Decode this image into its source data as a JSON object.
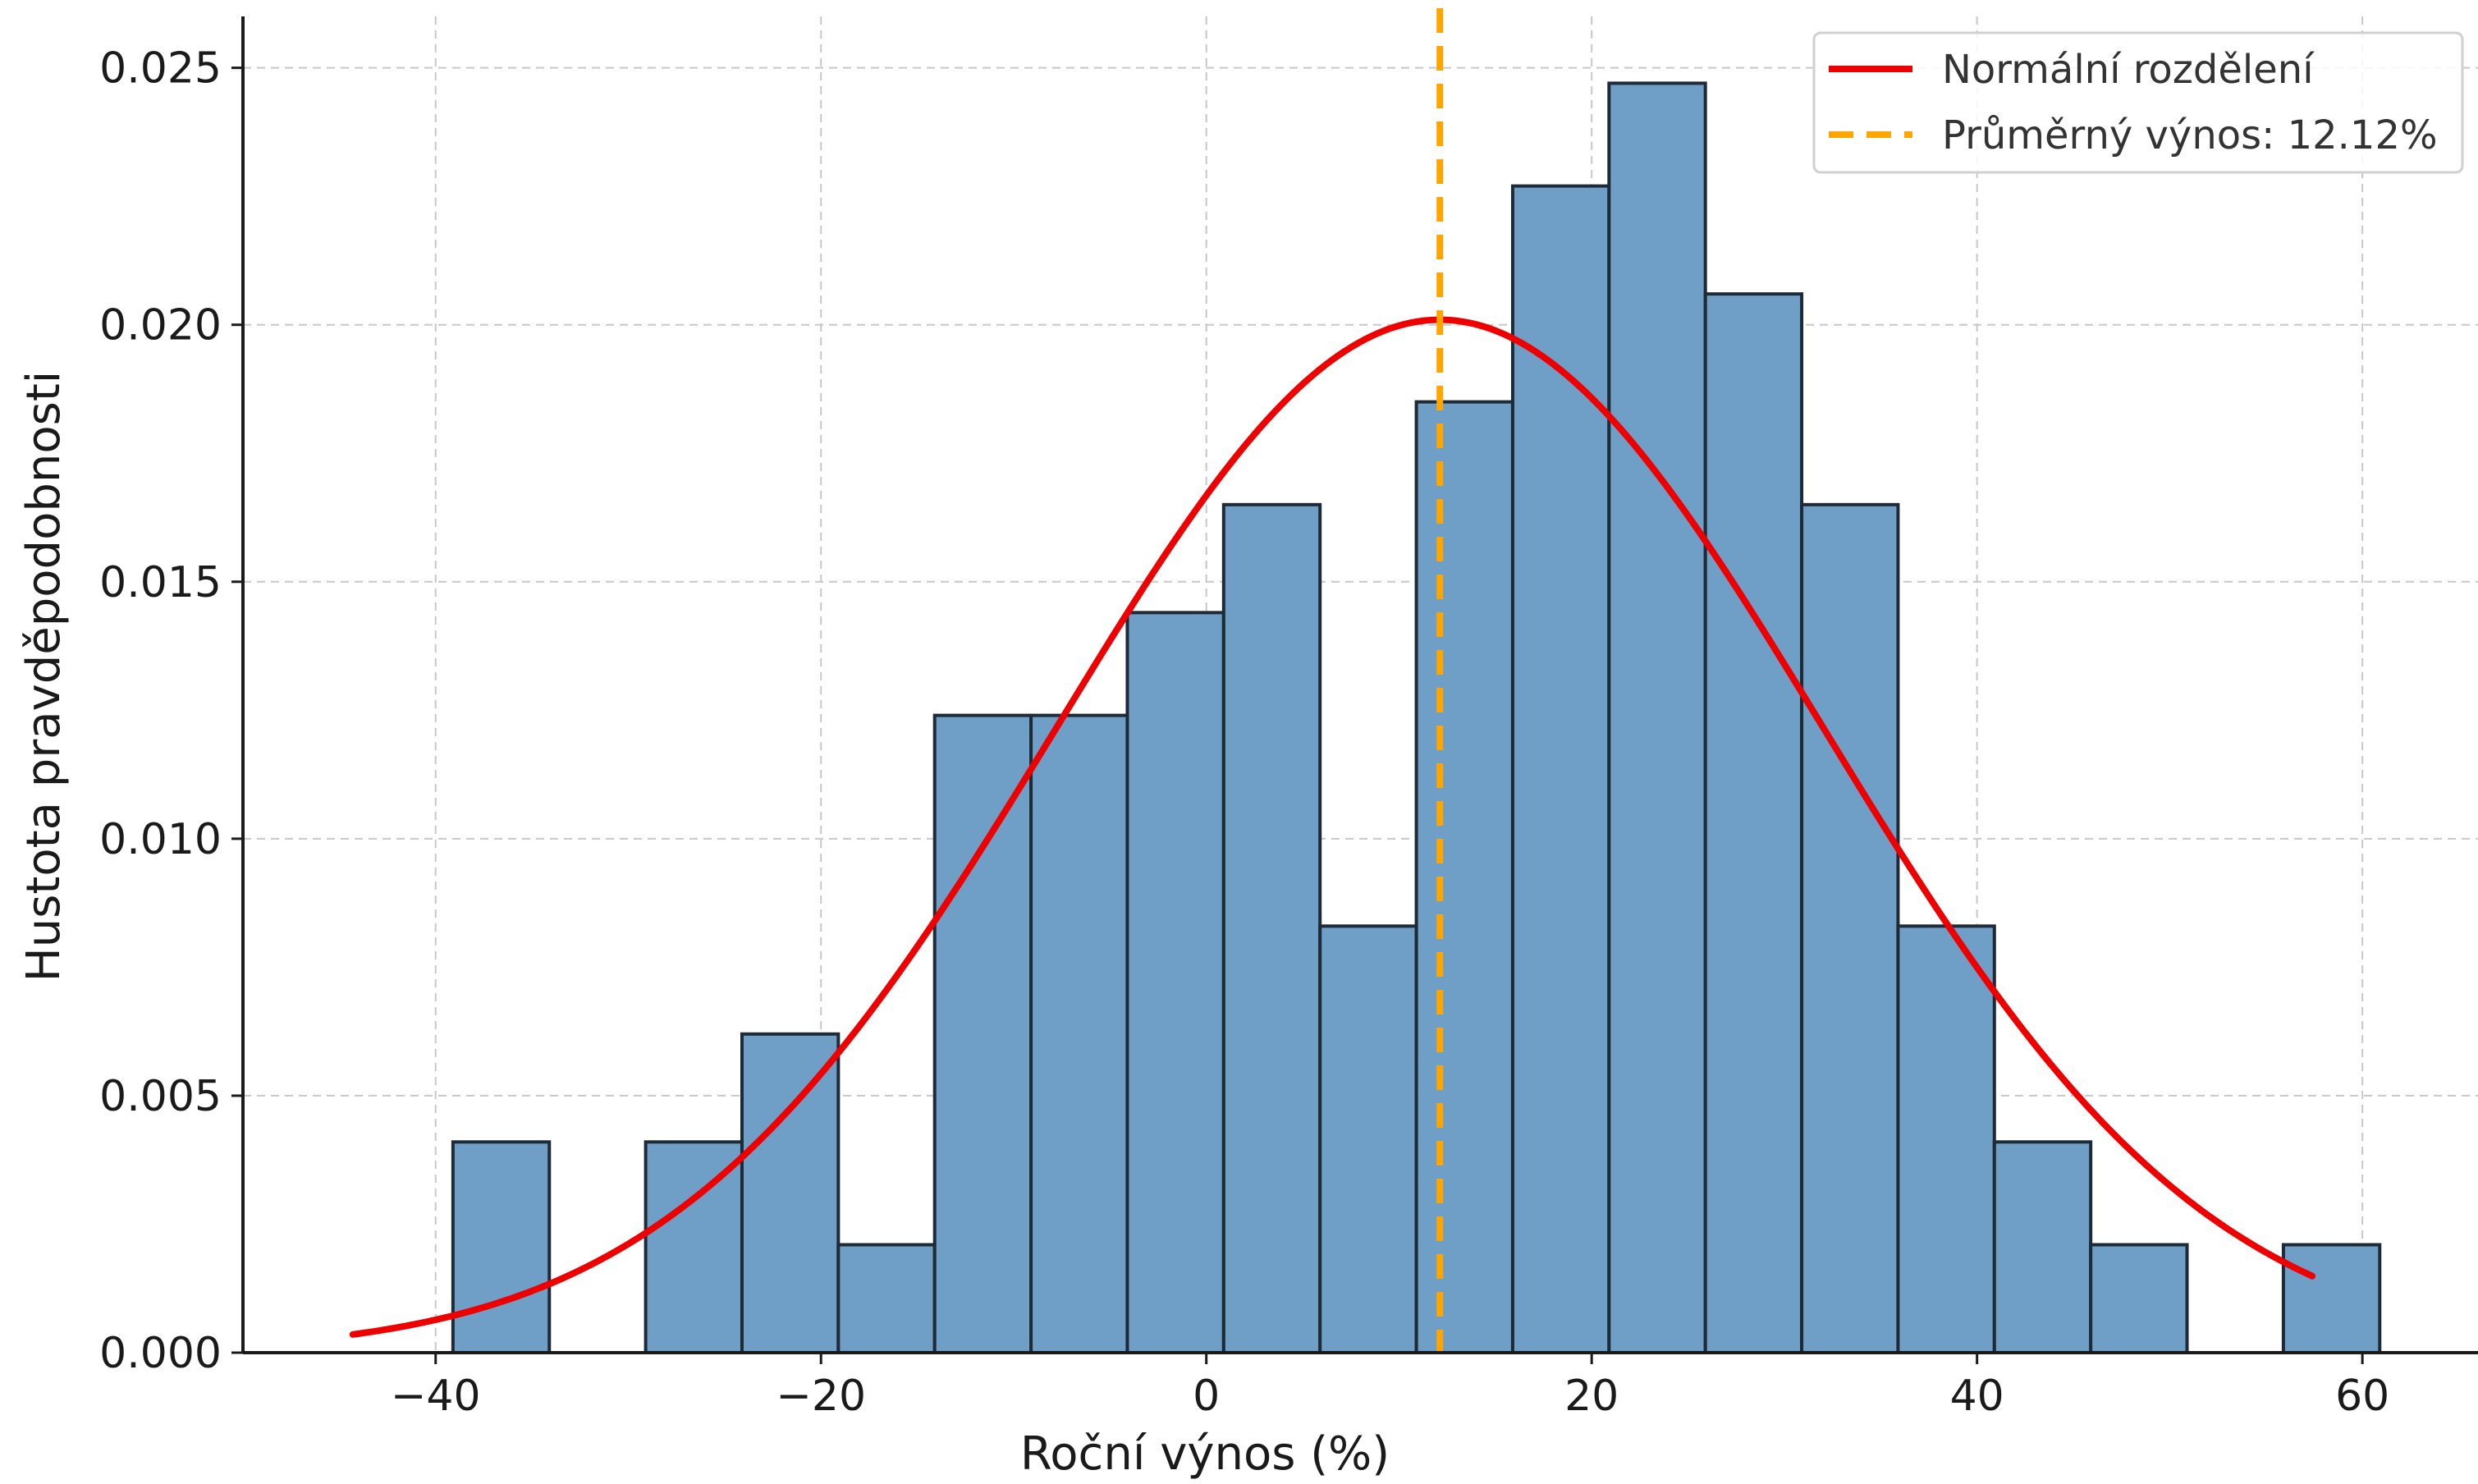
{
  "chart_data": {
    "type": "bar",
    "xlabel": "Roční výnos (%)",
    "ylabel": "Hustota pravděpodobnosti",
    "xlim": [
      -50,
      66
    ],
    "ylim": [
      0,
      0.026
    ],
    "xticks": [
      -40,
      -20,
      0,
      20,
      40,
      60
    ],
    "yticks": [
      0,
      0.005,
      0.01,
      0.015,
      0.02,
      0.025
    ],
    "ytick_labels": [
      "0.000",
      "0.005",
      "0.010",
      "0.015",
      "0.020",
      "0.025"
    ],
    "grid": true,
    "bins": [
      {
        "x0": -39.1,
        "x1": -34.1,
        "density": 0.0041
      },
      {
        "x0": -34.1,
        "x1": -29.1,
        "density": 0.0
      },
      {
        "x0": -29.1,
        "x1": -24.1,
        "density": 0.0041
      },
      {
        "x0": -24.1,
        "x1": -19.1,
        "density": 0.0062
      },
      {
        "x0": -19.1,
        "x1": -14.1,
        "density": 0.0021
      },
      {
        "x0": -14.1,
        "x1": -9.1,
        "density": 0.0124
      },
      {
        "x0": -9.1,
        "x1": -4.1,
        "density": 0.0124
      },
      {
        "x0": -4.1,
        "x1": 0.9,
        "density": 0.0144
      },
      {
        "x0": 0.9,
        "x1": 5.9,
        "density": 0.0165
      },
      {
        "x0": 5.9,
        "x1": 10.9,
        "density": 0.0083
      },
      {
        "x0": 10.9,
        "x1": 15.9,
        "density": 0.0185
      },
      {
        "x0": 15.9,
        "x1": 20.9,
        "density": 0.0227
      },
      {
        "x0": 20.9,
        "x1": 25.9,
        "density": 0.0247
      },
      {
        "x0": 25.9,
        "x1": 30.9,
        "density": 0.0206
      },
      {
        "x0": 30.9,
        "x1": 35.9,
        "density": 0.0165
      },
      {
        "x0": 35.9,
        "x1": 40.9,
        "density": 0.0083
      },
      {
        "x0": 40.9,
        "x1": 45.9,
        "density": 0.0041
      },
      {
        "x0": 45.9,
        "x1": 50.9,
        "density": 0.0021
      },
      {
        "x0": 50.9,
        "x1": 55.9,
        "density": 0.0
      },
      {
        "x0": 55.9,
        "x1": 60.9,
        "density": 0.0021
      }
    ],
    "normal_curve": {
      "name": "Normální rozdělení",
      "mean": 12.12,
      "std": 19.85,
      "x_range": [
        -44.3,
        57.4
      ],
      "color": "#ee0000"
    },
    "mean_line": {
      "name": "Průměrný výnos: 12.12%",
      "value": 12.12,
      "color": "#ffa500"
    },
    "bar_color": "#6f9ec6",
    "legend": {
      "placement": "top-right",
      "entries": [
        "Normální rozdělení",
        "Průměrný výnos: 12.12%"
      ]
    }
  }
}
